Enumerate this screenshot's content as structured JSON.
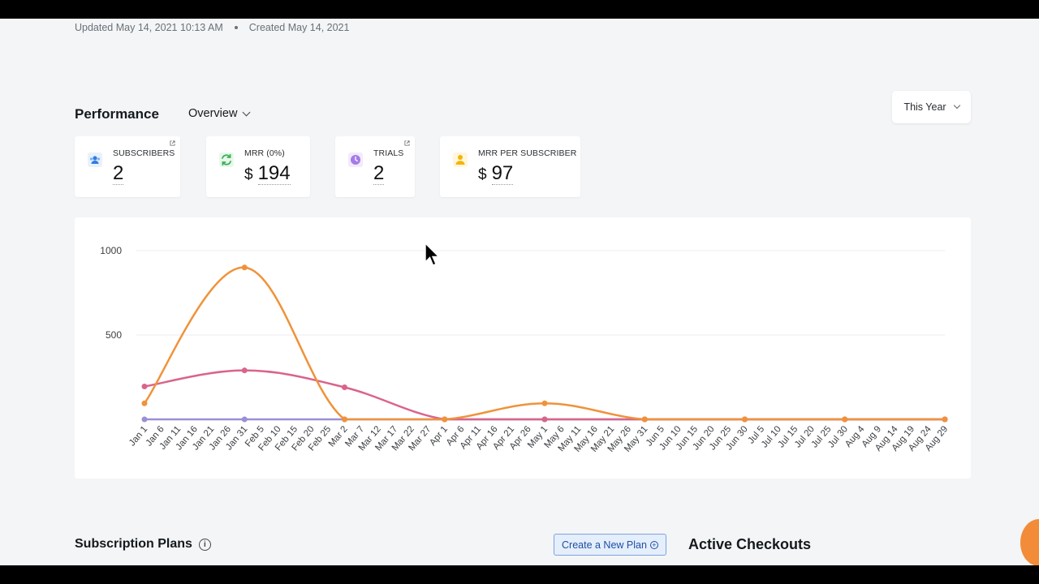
{
  "meta": {
    "updated": "Updated May 14, 2021 10:13 AM",
    "created": "Created May 14, 2021"
  },
  "performance": {
    "title": "Performance",
    "view": "Overview",
    "period": "This Year"
  },
  "cards": {
    "subscribers": {
      "label": "SUBSCRIBERS",
      "value": "2",
      "icon": "users-icon",
      "color": "#2f7de1"
    },
    "mrr": {
      "label": "MRR (0%)",
      "currency": "$",
      "value": "194",
      "icon": "recurring-arrows-icon",
      "color": "#3bb35a"
    },
    "trials": {
      "label": "TRIALS",
      "value": "2",
      "icon": "clock-icon",
      "color": "#a57be8"
    },
    "mrr_per_sub": {
      "label": "MRR PER SUBSCRIBER",
      "currency": "$",
      "value": "97",
      "icon": "person-icon",
      "color": "#f5b400"
    }
  },
  "chart_data": {
    "type": "line",
    "categories": [
      "Jan 1",
      "Jan 6",
      "Jan 11",
      "Jan 16",
      "Jan 21",
      "Jan 26",
      "Jan 31",
      "Feb 5",
      "Feb 10",
      "Feb 15",
      "Feb 20",
      "Feb 25",
      "Mar 2",
      "Mar 7",
      "Mar 12",
      "Mar 17",
      "Mar 22",
      "Mar 27",
      "Apr 1",
      "Apr 6",
      "Apr 11",
      "Apr 16",
      "Apr 21",
      "Apr 26",
      "May 1",
      "May 6",
      "May 11",
      "May 16",
      "May 21",
      "May 26",
      "May 31",
      "Jun 5",
      "Jun 10",
      "Jun 15",
      "Jun 20",
      "Jun 25",
      "Jun 30",
      "Jul 5",
      "Jul 10",
      "Jul 15",
      "Jul 20",
      "Jul 25",
      "Jul 30",
      "Aug 4",
      "Aug 9",
      "Aug 14",
      "Aug 19",
      "Aug 24",
      "Aug 29"
    ],
    "y_ticks": [
      "1000",
      "500"
    ],
    "ylim": [
      0,
      1000
    ],
    "series": [
      {
        "color": "#f0923a",
        "values": [
          95,
          null,
          null,
          null,
          null,
          null,
          900,
          null,
          null,
          null,
          null,
          null,
          0,
          null,
          null,
          null,
          null,
          null,
          0,
          null,
          null,
          null,
          null,
          null,
          95,
          null,
          null,
          null,
          null,
          null,
          0,
          null,
          null,
          null,
          null,
          null,
          0,
          null,
          null,
          null,
          null,
          null,
          0,
          null,
          null,
          null,
          null,
          null,
          0
        ]
      },
      {
        "color": "#d9648a",
        "values": [
          195,
          null,
          null,
          null,
          null,
          null,
          290,
          null,
          null,
          null,
          null,
          null,
          190,
          null,
          null,
          null,
          null,
          null,
          0,
          null,
          null,
          null,
          null,
          null,
          0,
          null,
          null,
          null,
          null,
          null,
          0,
          null,
          null,
          null,
          null,
          null,
          0,
          null,
          null,
          null,
          null,
          null,
          0,
          null,
          null,
          null,
          null,
          null,
          0
        ]
      },
      {
        "color": "#9b8fd6",
        "values": [
          0,
          null,
          null,
          null,
          null,
          null,
          0,
          null,
          null,
          null,
          null,
          null,
          0,
          null,
          null,
          null,
          null,
          null,
          0,
          null,
          null,
          null,
          null,
          null,
          0,
          null,
          null,
          null,
          null,
          null,
          0,
          null,
          null,
          null,
          null,
          null,
          0,
          null,
          null,
          null,
          null,
          null,
          0,
          null,
          null,
          null,
          null,
          null,
          0
        ]
      }
    ],
    "grid": true
  },
  "plans": {
    "title": "Subscription Plans",
    "create_label": "Create a New Plan"
  },
  "checkouts": {
    "title": "Active Checkouts"
  }
}
